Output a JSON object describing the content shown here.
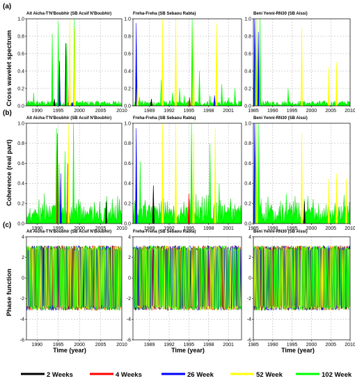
{
  "panel_labels": [
    "(a)",
    "(b)",
    "(c)"
  ],
  "row_ylabels": [
    "Cross wavelet spectrum",
    "Coherence (real part)",
    "Phase function"
  ],
  "xlabel": "Time (year)",
  "legend": [
    {
      "label": "2    Weeks",
      "color": "#000000"
    },
    {
      "label": "4   Weeks",
      "color": "#ff0000"
    },
    {
      "label": "26    Week",
      "color": "#0000ff"
    },
    {
      "label": "52    Week",
      "color": "#ffff00"
    },
    {
      "label": "102   Week",
      "color": "#00ff00"
    }
  ],
  "chart_data": [
    {
      "type": "area",
      "row": 0,
      "col": 0,
      "title": "Ait Aicha-T'N'Boubhir (SB Acsif N'Boubhir)",
      "xlim": [
        1987.5,
        2010
      ],
      "xticks": [
        1990,
        1995,
        2000,
        2005,
        2010
      ],
      "ylim": [
        0,
        1.0
      ],
      "yticks": [
        "0.0",
        "0.2",
        "0.4",
        "0.6",
        "0.8",
        "1.0"
      ],
      "ytick_values": [
        0,
        0.2,
        0.4,
        0.6,
        0.8,
        1.0
      ],
      "grid": true,
      "spikes": [
        [
          1989.2,
          0.15,
          "#00ff00"
        ],
        [
          1991,
          0.05,
          "#00ff00"
        ],
        [
          1993.6,
          0.83,
          "#00ff00"
        ],
        [
          1994.1,
          0.08,
          "#000000"
        ],
        [
          1995,
          0.97,
          "#00ff00"
        ],
        [
          1995.3,
          0.52,
          "#0000ff"
        ],
        [
          1996.8,
          0.72,
          "#000000"
        ],
        [
          1997,
          0.72,
          "#00ff00"
        ],
        [
          1997.6,
          0.35,
          "#ff0000"
        ],
        [
          1997.7,
          1.0,
          "#ffff00"
        ],
        [
          1998.3,
          0.04,
          "#0000ff"
        ],
        [
          1998.8,
          1.0,
          "#00ff00"
        ],
        [
          1998.9,
          0.9,
          "#ffff00"
        ],
        [
          1999.5,
          0.06,
          "#00ff00"
        ],
        [
          2001,
          0.03,
          "#00ff00"
        ],
        [
          2005,
          0.03,
          "#00ff00"
        ],
        [
          2008.5,
          0.02,
          "#00ff00"
        ]
      ]
    },
    {
      "type": "area",
      "row": 0,
      "col": 1,
      "title": "Freha-Freha (SB Sebaou Rabta)",
      "xlim": [
        1986.5,
        2003
      ],
      "xticks": [
        1989,
        1992,
        1995,
        1998,
        2001
      ],
      "ylim": [
        0,
        1.0
      ],
      "yticks": [
        "0.0",
        "0.2",
        "0.4",
        "0.6",
        "0.8",
        "1.0"
      ],
      "ytick_values": [
        0,
        0.2,
        0.4,
        0.6,
        0.8,
        1.0
      ],
      "grid": true,
      "spikes": [
        [
          1987,
          0.95,
          "#0000ff"
        ],
        [
          1987.2,
          0.3,
          "#ffff00"
        ],
        [
          1987.5,
          0.1,
          "#00ff00"
        ],
        [
          1989.3,
          0.08,
          "#000000"
        ],
        [
          1990.8,
          0.3,
          "#00ff00"
        ],
        [
          1991,
          1.0,
          "#ffff00"
        ],
        [
          1992.5,
          0.15,
          "#00ff00"
        ],
        [
          1993,
          1.0,
          "#ffff00"
        ],
        [
          1993.6,
          0.2,
          "#00ff00"
        ],
        [
          1994.3,
          0.12,
          "#00ff00"
        ],
        [
          1995.1,
          0.1,
          "#ff0000"
        ],
        [
          1995.5,
          1.0,
          "#00ff00"
        ],
        [
          1995.7,
          0.9,
          "#ffff00"
        ],
        [
          1996.6,
          0.4,
          "#00ff00"
        ],
        [
          1998.2,
          0.12,
          "#00ff00"
        ],
        [
          1998.9,
          0.12,
          "#0000ff"
        ],
        [
          1999.2,
          0.95,
          "#ffff00"
        ],
        [
          2000,
          0.25,
          "#00ff00"
        ],
        [
          2001,
          0.1,
          "#00ff00"
        ],
        [
          2002,
          0.2,
          "#00ff00"
        ]
      ]
    },
    {
      "type": "area",
      "row": 0,
      "col": 2,
      "title": "Beni Yenni-RN30 (SB Aissi)",
      "xlim": [
        1985,
        2010
      ],
      "xticks": [
        1985,
        1990,
        1995,
        2000,
        2005,
        2010
      ],
      "ylim": [
        0,
        1.0
      ],
      "yticks": [
        "0.0",
        "0.2",
        "0.4",
        "0.6",
        "0.8",
        "1.0"
      ],
      "ytick_values": [
        0,
        0.2,
        0.4,
        0.6,
        0.8,
        1.0
      ],
      "grid": true,
      "spikes": [
        [
          1985.3,
          1.0,
          "#0000ff"
        ],
        [
          1985.6,
          1.0,
          "#00ff00"
        ],
        [
          1986,
          1.0,
          "#ffff00"
        ],
        [
          1986.3,
          0.85,
          "#0000ff"
        ],
        [
          1986.7,
          1.0,
          "#00ff00"
        ],
        [
          1987.5,
          0.05,
          "#00ff00"
        ],
        [
          1990,
          0.03,
          "#00ff00"
        ],
        [
          1994,
          0.2,
          "#00ff00"
        ],
        [
          1997.5,
          0.9,
          "#ffff00"
        ],
        [
          2002,
          0.05,
          "#00ff00"
        ],
        [
          2004.5,
          0.45,
          "#ffff00"
        ],
        [
          2006.5,
          0.5,
          "#ffff00"
        ],
        [
          2008.5,
          0.05,
          "#00ff00"
        ],
        [
          2009.5,
          0.05,
          "#00ff00"
        ]
      ]
    },
    {
      "type": "area",
      "row": 1,
      "col": 0,
      "title": "Ait Aicha-T'N'Boubhir (SB Acsif N'Boubhir)",
      "xlim": [
        1987.5,
        2010
      ],
      "xticks": [
        1990,
        1995,
        2000,
        2005,
        2010
      ],
      "ylim": [
        0,
        1.0
      ],
      "yticks": [
        "0.0",
        "0.2",
        "0.4",
        "0.6",
        "0.8",
        "1.0"
      ],
      "ytick_values": [
        0,
        0.2,
        0.4,
        0.6,
        0.8,
        1.0
      ],
      "grid": true,
      "spikes": [
        [
          1994.6,
          0.95,
          "#00ff00"
        ],
        [
          1994.8,
          0.9,
          "#ff0000"
        ],
        [
          1995.2,
          0.6,
          "#00ff00"
        ],
        [
          1995.6,
          0.5,
          "#0000ff"
        ],
        [
          1996.6,
          0.72,
          "#00ff00"
        ],
        [
          1997.2,
          0.6,
          "#ff0000"
        ],
        [
          1997.4,
          1.0,
          "#ffff00"
        ],
        [
          1998.6,
          1.0,
          "#00ff00"
        ],
        [
          2006.3,
          0.22,
          "#000000"
        ]
      ]
    },
    {
      "type": "area",
      "row": 1,
      "col": 1,
      "title": "Freha-Freha (SB Sebaou Rabta)",
      "xlim": [
        1986.5,
        2003
      ],
      "xticks": [
        1989,
        1992,
        1995,
        1998,
        2001
      ],
      "ylim": [
        0,
        1.0
      ],
      "yticks": [
        "0.0",
        "0.2",
        "0.4",
        "0.6",
        "0.8",
        "1.0"
      ],
      "ytick_values": [
        0,
        0.2,
        0.4,
        0.6,
        0.8,
        1.0
      ],
      "grid": true,
      "spikes": [
        [
          1987,
          0.95,
          "#0000ff"
        ],
        [
          1987.6,
          0.62,
          "#00ff00"
        ],
        [
          1989.6,
          0.38,
          "#000000"
        ],
        [
          1991,
          1.0,
          "#ffff00"
        ],
        [
          1993,
          1.0,
          "#ffff00"
        ],
        [
          1995,
          0.3,
          "#ff0000"
        ],
        [
          1995.4,
          1.0,
          "#00ff00"
        ],
        [
          1995.7,
          0.9,
          "#ffff00"
        ],
        [
          1998.2,
          0.8,
          "#00ff00"
        ],
        [
          1999,
          0.95,
          "#ffff00"
        ],
        [
          1999.6,
          0.4,
          "#00ff00"
        ]
      ]
    },
    {
      "type": "area",
      "row": 1,
      "col": 2,
      "title": "Beni Yenni-RN30 (SB Aissi)",
      "xlim": [
        1985,
        2010
      ],
      "xticks": [
        1985,
        1990,
        1995,
        2000,
        2005,
        2010
      ],
      "ylim": [
        0,
        1.0
      ],
      "yticks": [
        "0.0",
        "0.2",
        "0.4",
        "0.6",
        "0.8",
        "1.0"
      ],
      "ytick_values": [
        0,
        0.2,
        0.4,
        0.6,
        0.8,
        1.0
      ],
      "grid": true,
      "spikes": [
        [
          1985.3,
          1.0,
          "#0000ff"
        ],
        [
          1985.6,
          1.0,
          "#00ff00"
        ],
        [
          1986,
          1.0,
          "#ffff00"
        ],
        [
          1986.4,
          1.0,
          "#00ff00"
        ],
        [
          1987,
          0.25,
          "#00ff00"
        ],
        [
          1993.5,
          0.3,
          "#00ff00"
        ],
        [
          1997.5,
          0.9,
          "#ffff00"
        ],
        [
          1998.2,
          0.22,
          "#000000"
        ],
        [
          2000.5,
          0.2,
          "#00ff00"
        ],
        [
          2004.5,
          0.45,
          "#ffff00"
        ],
        [
          2006.5,
          0.5,
          "#ffff00"
        ],
        [
          2009,
          0.45,
          "#ffff00"
        ]
      ]
    },
    {
      "type": "line",
      "row": 2,
      "col": 0,
      "title": "Ait Aicha-T'N'Boubhir (SB Acsif N'Boubhir)",
      "xlim": [
        1987.5,
        2010
      ],
      "xticks": [
        1990,
        1995,
        2000,
        2005,
        2010
      ],
      "ylim": [
        -6,
        4
      ],
      "yticks": [
        "-6",
        "-4",
        "-2",
        "0",
        "2",
        "4"
      ],
      "ytick_values": [
        -6,
        -4,
        -2,
        0,
        2,
        4
      ],
      "grid": true,
      "phase_range": [
        -3.14,
        3.14
      ]
    },
    {
      "type": "line",
      "row": 2,
      "col": 1,
      "title": "Freha-Freha (SB Sebaou Rabta)",
      "xlim": [
        1986.5,
        2003
      ],
      "xticks": [
        1989,
        1992,
        1995,
        1998,
        2001
      ],
      "ylim": [
        -6,
        4
      ],
      "yticks": [
        "-6",
        "-4",
        "-2",
        "0",
        "2",
        "4"
      ],
      "ytick_values": [
        -6,
        -4,
        -2,
        0,
        2,
        4
      ],
      "grid": true,
      "phase_range": [
        -3.14,
        3.14
      ]
    },
    {
      "type": "line",
      "row": 2,
      "col": 2,
      "title": "Beni Yenni-RN30 (SB Aissi)",
      "xlim": [
        1985,
        2010
      ],
      "xticks": [
        1985,
        1990,
        1995,
        2000,
        2005,
        2010
      ],
      "ylim": [
        -6,
        4
      ],
      "yticks": [
        "-6",
        "-4",
        "-2",
        "0",
        "2",
        "4"
      ],
      "ytick_values": [
        -6,
        -4,
        -2,
        0,
        2,
        4
      ],
      "grid": true,
      "phase_range": [
        -3.14,
        3.14
      ]
    }
  ]
}
